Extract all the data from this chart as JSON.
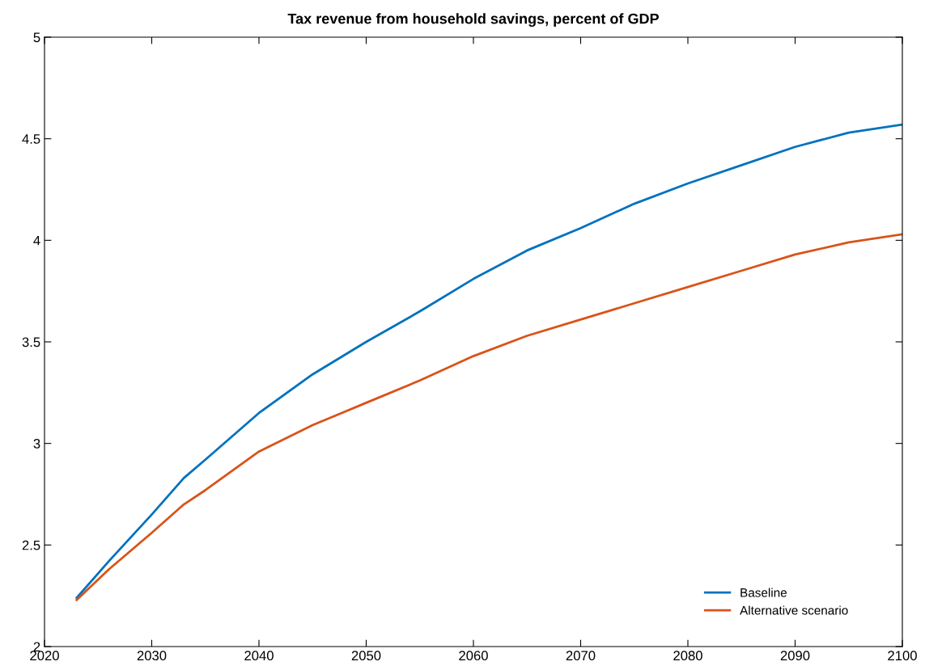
{
  "chart_data": {
    "type": "line",
    "title": "Tax revenue from household savings, percent of GDP",
    "x": [
      2023,
      2026,
      2030,
      2033,
      2035,
      2040,
      2045,
      2050,
      2055,
      2060,
      2065,
      2070,
      2075,
      2080,
      2085,
      2090,
      2095,
      2100
    ],
    "series": [
      {
        "name": "Baseline",
        "color": "#0072bd",
        "values": [
          2.24,
          2.42,
          2.65,
          2.83,
          2.92,
          3.15,
          3.34,
          3.5,
          3.65,
          3.81,
          3.95,
          4.06,
          4.18,
          4.28,
          4.37,
          4.46,
          4.53,
          4.57
        ]
      },
      {
        "name": "Alternative scenario",
        "color": "#d95319",
        "values": [
          2.23,
          2.38,
          2.56,
          2.7,
          2.77,
          2.96,
          3.09,
          3.2,
          3.31,
          3.43,
          3.53,
          3.61,
          3.69,
          3.77,
          3.85,
          3.93,
          3.99,
          4.03
        ]
      }
    ],
    "xlim": [
      2020,
      2100
    ],
    "xticks": [
      2020,
      2030,
      2040,
      2050,
      2060,
      2070,
      2080,
      2090,
      2100
    ],
    "ylim": [
      2,
      5
    ],
    "yticks": [
      2,
      2.5,
      3,
      3.5,
      4,
      4.5,
      5
    ],
    "legend": "bottom right",
    "grid": false,
    "marker": "none",
    "line_style": "solid"
  }
}
